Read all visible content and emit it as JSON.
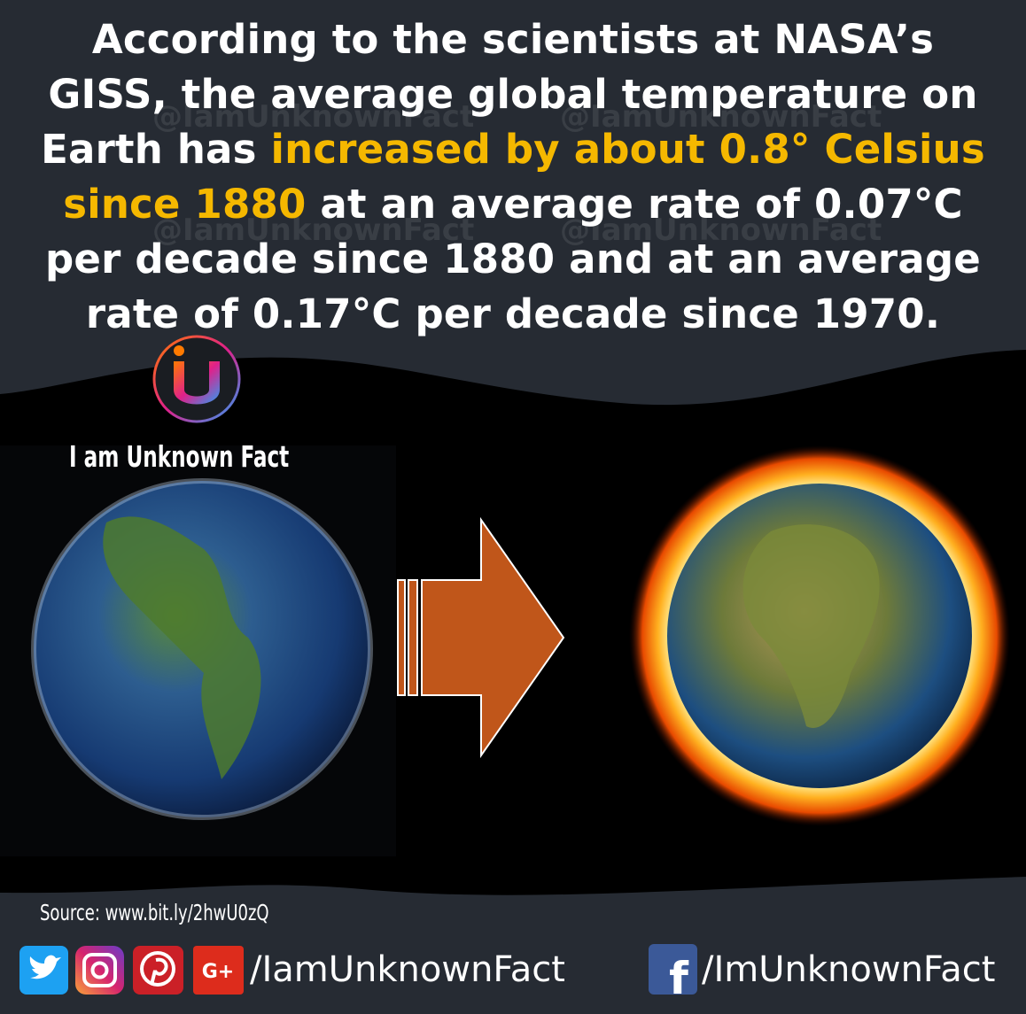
{
  "headline": {
    "before": "According to the scientists at NASA’s GISS, the average global temperature on Earth has ",
    "highlight": "increased by about 0.8° Celsius since 1880",
    "after": " at an average rate of 0.07°C per decade since 1880 and at an average rate of 0.17°C per decade since 1970."
  },
  "watermark": "@IamUnknownFact",
  "brand": "I am Unknown Fact",
  "source": "Source: www.bit.ly/2hwU0zQ",
  "google_plus_icon": "G+",
  "facebook_icon": "f",
  "handle_left": "/IamUnknownFact",
  "handle_right": "/ImUnknownFact"
}
